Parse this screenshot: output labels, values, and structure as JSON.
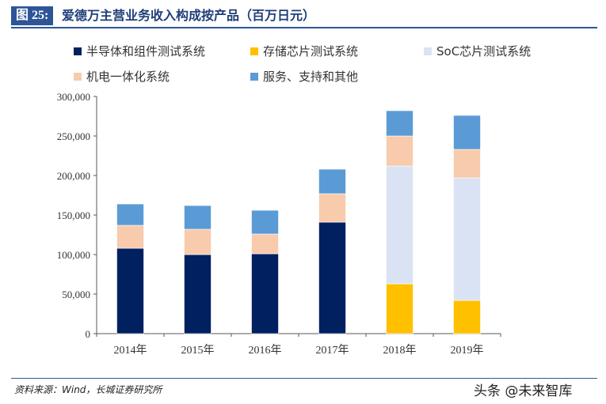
{
  "header": {
    "figure_no": "图 25:",
    "title": "爱德万主营业务收入构成按产品（百万日元）"
  },
  "footer": {
    "source": "资料来源：Wind，长城证券研究所",
    "watermark": "头条 @未来智库"
  },
  "chart_data": {
    "type": "bar",
    "stacked": true,
    "title": "爱德万主营业务收入构成按产品（百万日元）",
    "categories": [
      "2014年",
      "2015年",
      "2016年",
      "2017年",
      "2018年",
      "2019年"
    ],
    "ylim": [
      0,
      300000
    ],
    "yticks": [
      "0",
      "50,000",
      "100,000",
      "150,000",
      "200,000",
      "250,000",
      "300,000"
    ],
    "ytick_values": [
      0,
      50000,
      100000,
      150000,
      200000,
      250000,
      300000
    ],
    "grid": false,
    "legend_position": "top",
    "series": [
      {
        "name": "半导体和组件测试系统",
        "color": "#002060",
        "values": [
          108000,
          100000,
          101000,
          141000,
          0,
          0
        ]
      },
      {
        "name": "存储芯片测试系统",
        "color": "#ffc000",
        "values": [
          0,
          0,
          0,
          0,
          63000,
          42000
        ]
      },
      {
        "name": "SoC芯片测试系统",
        "color": "#dae3f3",
        "values": [
          0,
          0,
          0,
          0,
          149000,
          155000
        ]
      },
      {
        "name": "机电一体化系统",
        "color": "#f8cbad",
        "values": [
          29000,
          32000,
          25000,
          36000,
          38000,
          36000
        ]
      },
      {
        "name": "服务、支持和其他",
        "color": "#5b9bd5",
        "values": [
          27000,
          30000,
          30000,
          31000,
          32000,
          43000
        ]
      }
    ]
  }
}
